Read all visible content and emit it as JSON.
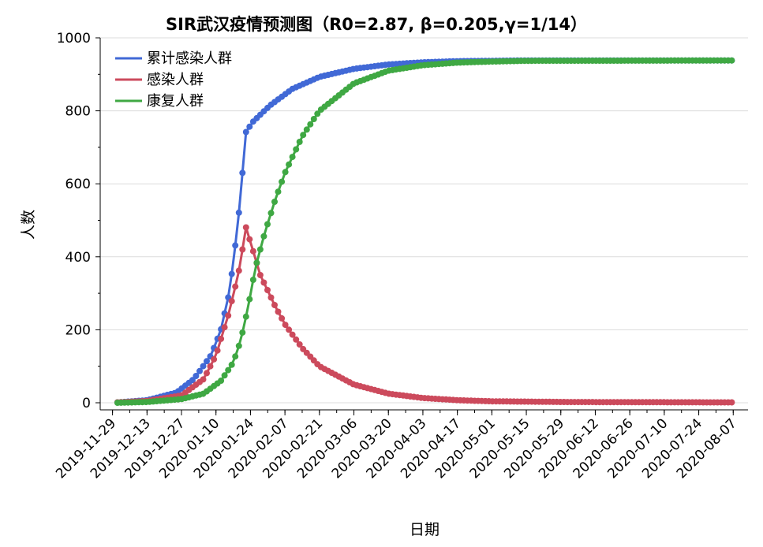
{
  "chart_data": {
    "type": "line",
    "title": "SIR武汉疫情预测图（R0=2.87, β=0.205,γ=1/14）",
    "xlabel": "日期",
    "ylabel": "人数",
    "ylim": [
      0,
      1000
    ],
    "yticks": [
      0,
      200,
      400,
      600,
      800,
      1000
    ],
    "x_start": "2019-12-01",
    "x_end": "2020-08-07",
    "xticks": [
      "2019-11-29",
      "2019-12-13",
      "2019-12-27",
      "2020-01-10",
      "2020-01-24",
      "2020-02-07",
      "2020-02-21",
      "2020-03-06",
      "2020-03-20",
      "2020-04-03",
      "2020-04-17",
      "2020-05-01",
      "2020-05-15",
      "2020-05-29",
      "2020-06-12",
      "2020-06-26",
      "2020-07-10",
      "2020-07-24",
      "2020-08-07"
    ],
    "grid": true,
    "legend_position": "top-left",
    "series": [
      {
        "name": "累计感染人群",
        "color": "#4169d6",
        "points": [
          [
            "2019-12-01",
            1
          ],
          [
            "2019-12-13",
            7
          ],
          [
            "2019-12-25",
            28
          ],
          [
            "2020-01-01",
            65
          ],
          [
            "2020-01-08",
            130
          ],
          [
            "2020-01-12",
            200
          ],
          [
            "2020-01-15",
            290
          ],
          [
            "2020-01-17",
            380
          ],
          [
            "2020-01-19",
            500
          ],
          [
            "2020-01-20",
            570
          ],
          [
            "2020-01-21",
            650
          ],
          [
            "2020-01-22",
            740
          ],
          [
            "2020-01-25",
            770
          ],
          [
            "2020-02-01",
            815
          ],
          [
            "2020-02-10",
            860
          ],
          [
            "2020-02-21",
            893
          ],
          [
            "2020-03-06",
            915
          ],
          [
            "2020-03-20",
            927
          ],
          [
            "2020-04-03",
            933
          ],
          [
            "2020-04-17",
            936
          ],
          [
            "2020-05-15",
            938
          ],
          [
            "2020-08-07",
            938
          ]
        ]
      },
      {
        "name": "感染人群",
        "color": "#cc4a5c",
        "points": [
          [
            "2019-12-01",
            1
          ],
          [
            "2019-12-13",
            5
          ],
          [
            "2019-12-27",
            20
          ],
          [
            "2020-01-05",
            65
          ],
          [
            "2020-01-10",
            130
          ],
          [
            "2020-01-15",
            240
          ],
          [
            "2020-01-19",
            350
          ],
          [
            "2020-01-21",
            430
          ],
          [
            "2020-01-22",
            485
          ],
          [
            "2020-01-24",
            440
          ],
          [
            "2020-01-28",
            350
          ],
          [
            "2020-02-03",
            265
          ],
          [
            "2020-02-07",
            215
          ],
          [
            "2020-02-14",
            150
          ],
          [
            "2020-02-21",
            100
          ],
          [
            "2020-03-06",
            50
          ],
          [
            "2020-03-20",
            25
          ],
          [
            "2020-04-03",
            13
          ],
          [
            "2020-04-17",
            7
          ],
          [
            "2020-05-01",
            4
          ],
          [
            "2020-06-01",
            2
          ],
          [
            "2020-08-07",
            1
          ]
        ]
      },
      {
        "name": "康复人群",
        "color": "#3fa843",
        "points": [
          [
            "2019-12-01",
            0
          ],
          [
            "2019-12-13",
            2
          ],
          [
            "2019-12-27",
            10
          ],
          [
            "2020-01-05",
            25
          ],
          [
            "2020-01-12",
            60
          ],
          [
            "2020-01-17",
            110
          ],
          [
            "2020-01-20",
            170
          ],
          [
            "2020-01-23",
            260
          ],
          [
            "2020-01-26",
            370
          ],
          [
            "2020-01-30",
            470
          ],
          [
            "2020-02-03",
            555
          ],
          [
            "2020-02-07",
            630
          ],
          [
            "2020-02-14",
            730
          ],
          [
            "2020-02-21",
            800
          ],
          [
            "2020-03-06",
            875
          ],
          [
            "2020-03-20",
            910
          ],
          [
            "2020-04-03",
            925
          ],
          [
            "2020-04-17",
            932
          ],
          [
            "2020-05-01",
            935
          ],
          [
            "2020-05-15",
            937
          ],
          [
            "2020-08-07",
            938
          ]
        ]
      }
    ]
  }
}
